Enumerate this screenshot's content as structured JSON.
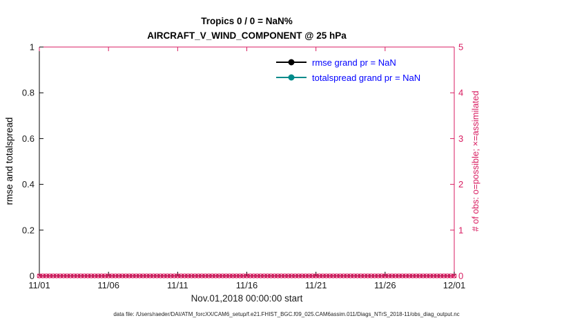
{
  "chart_data": {
    "type": "line",
    "title": "Tropics 0 / 0 = NaN%",
    "subtitle": "AIRCRAFT_V_WIND_COMPONENT @ 25 hPa",
    "xlabel": "Nov.01,2018 00:00:00 start",
    "ylabel_left": "rmse and totalspread",
    "ylabel_right": "# of obs: o=possible; ×=assimilated",
    "xlim": [
      0,
      30
    ],
    "x_ticks": [
      "11/01",
      "11/06",
      "11/11",
      "11/16",
      "11/21",
      "11/26",
      "12/01"
    ],
    "x_tick_days": [
      0,
      5,
      10,
      15,
      20,
      25,
      30
    ],
    "ylim_left": [
      0,
      1
    ],
    "yticks_left": [
      0,
      0.2,
      0.4,
      0.6,
      0.8,
      1
    ],
    "ytick_labels_left": [
      "0",
      "0.2",
      "0.4",
      "0.6",
      "0.8",
      "1"
    ],
    "ylim_right": [
      0,
      5
    ],
    "yticks_right": [
      0,
      1,
      2,
      3,
      4,
      5
    ],
    "grid": false,
    "legend_position": "upper right inside plot",
    "series": [
      {
        "name": "rmse grand pr = NaN",
        "color": "#000000",
        "values": "NaN"
      },
      {
        "name": "totalspread grand pr = NaN",
        "color": "#008b8b",
        "values": "NaN"
      }
    ],
    "obs_markers": {
      "description": "observation counts plotted on right axis, all zero",
      "axis": "right",
      "value": 0,
      "start_day": 0,
      "end_day": 30,
      "step_days": 0.25,
      "possible_marker": "o",
      "assimilated_marker": "×"
    },
    "colors": {
      "axis_left": "#000000",
      "axis_right": "#d81b60",
      "obs": "#d81b60",
      "legend_text": "#0000ff",
      "tick_label": "#1a1a1a"
    }
  },
  "footer": {
    "text": "data file: /Users/raeder/DAI/ATM_forcXX/CAM6_setup/f.e21.FHIST_BGC.f09_025.CAM6assim.011/Diags_NTrS_2018-11/obs_diag_output.nc"
  }
}
